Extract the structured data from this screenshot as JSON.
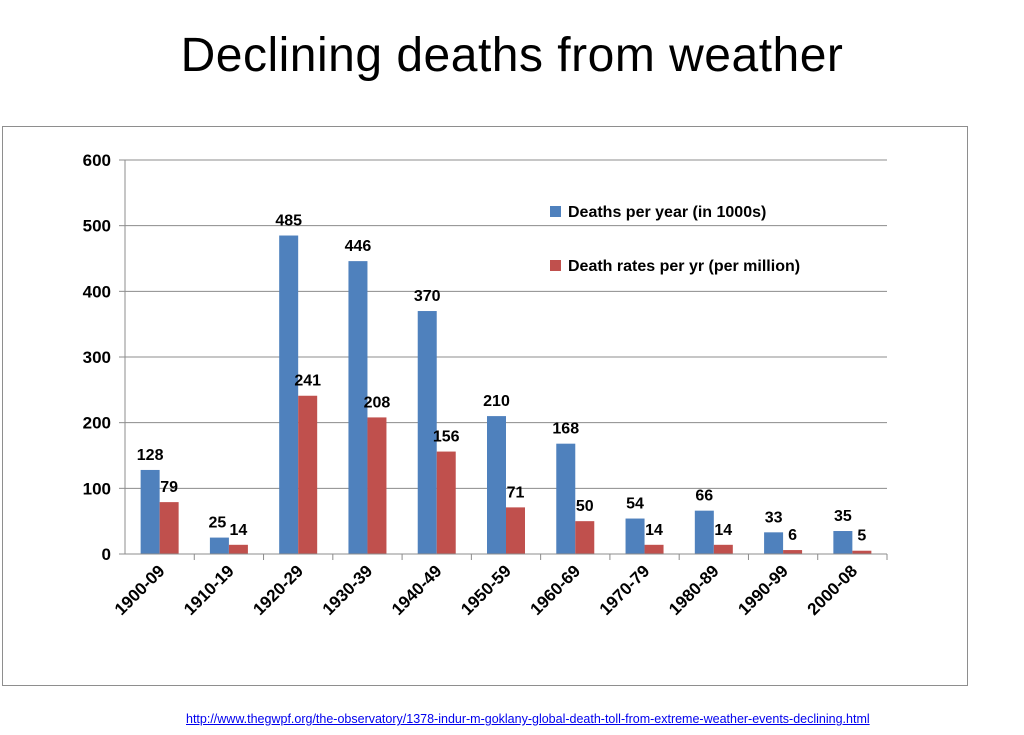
{
  "slide": {
    "title": "Declining deaths from weather",
    "source_url": "http://www.thegwpf.org/the-observatory/1378-indur-m-goklany-global-death-toll-from-extreme-weather-events-declining.html"
  },
  "chart_data": {
    "type": "bar",
    "title": "",
    "xlabel": "",
    "ylabel": "",
    "ylim": [
      0,
      600
    ],
    "yticks": [
      0,
      100,
      200,
      300,
      400,
      500,
      600
    ],
    "grid": true,
    "legend_position": "top-right",
    "categories": [
      "1900-09",
      "1910-19",
      "1920-29",
      "1930-39",
      "1940-49",
      "1950-59",
      "1960-69",
      "1970-79",
      "1980-89",
      "1990-99",
      "2000-08"
    ],
    "series": [
      {
        "name": "Deaths per year (in 1000s)",
        "color": "#4f81bd",
        "values": [
          128,
          25,
          485,
          446,
          370,
          210,
          168,
          54,
          66,
          33,
          35
        ]
      },
      {
        "name": "Death rates per yr (per million)",
        "color": "#c0504d",
        "values": [
          79,
          14,
          241,
          208,
          156,
          71,
          50,
          14,
          14,
          6,
          5
        ]
      }
    ]
  }
}
